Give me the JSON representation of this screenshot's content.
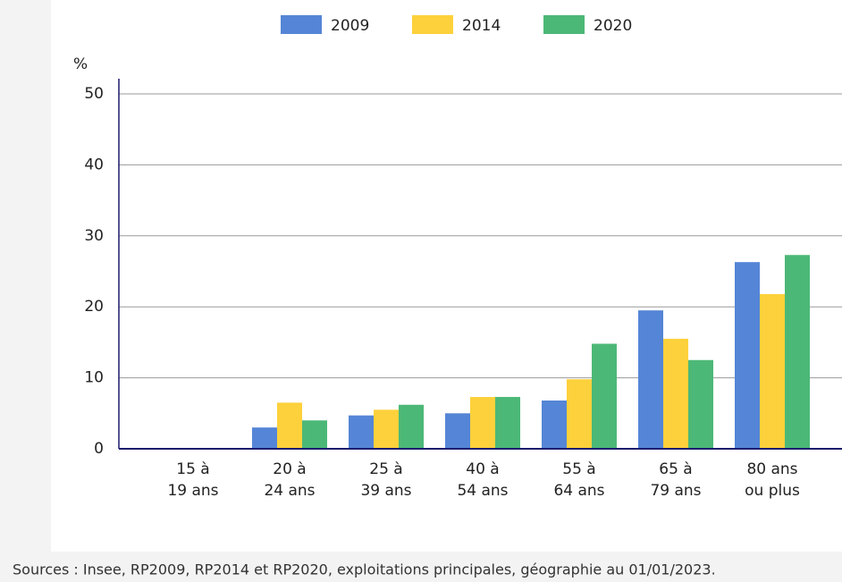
{
  "chart_data": {
    "type": "bar",
    "y_label": "%",
    "categories": [
      "15 à\n19 ans",
      "20 à\n24 ans",
      "25 à\n39 ans",
      "40 à\n54 ans",
      "55 à\n64 ans",
      "65 à\n79 ans",
      "80 ans\nou plus"
    ],
    "series": [
      {
        "name": "2009",
        "color": "#5585d6",
        "values": [
          0.1,
          3.0,
          4.7,
          5.0,
          6.8,
          19.5,
          26.3
        ]
      },
      {
        "name": "2014",
        "color": "#fdd13b",
        "values": [
          0.1,
          6.5,
          5.5,
          7.3,
          9.8,
          15.5,
          21.8
        ]
      },
      {
        "name": "2020",
        "color": "#4cb877",
        "values": [
          0.1,
          4.0,
          6.2,
          7.3,
          14.8,
          12.5,
          27.3
        ]
      }
    ],
    "ylim": [
      0,
      50
    ],
    "yticks": [
      0,
      10,
      20,
      30,
      40,
      50
    ],
    "grid": true,
    "legend": "top",
    "source": "Sources : Insee, RP2009, RP2014 et RP2020, exploitations principales, géographie au 01/01/2023."
  }
}
